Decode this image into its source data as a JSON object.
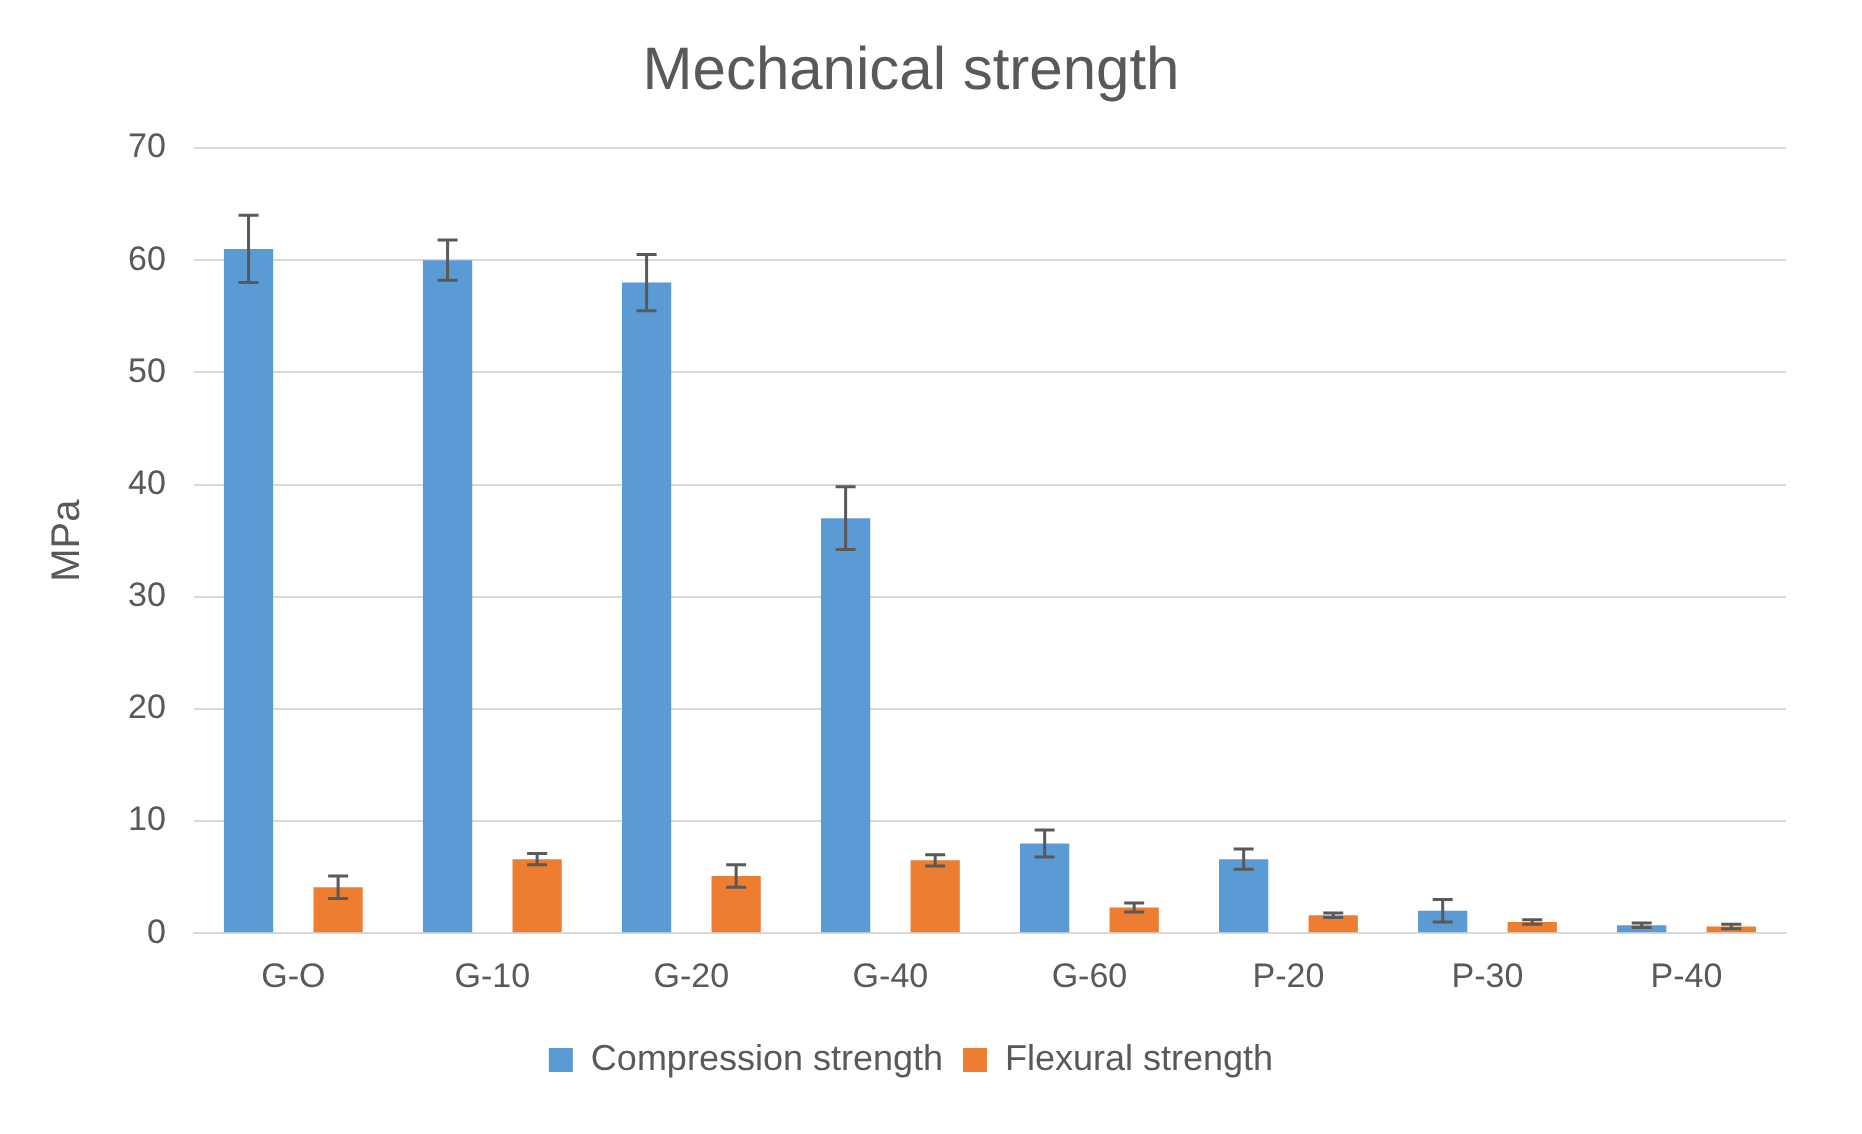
{
  "chart_data": {
    "type": "bar",
    "title": "Mechanical strength",
    "ylabel": "MPa",
    "categories": [
      "G-O",
      "G-10",
      "G-20",
      "G-40",
      "G-60",
      "P-20",
      "P-30",
      "P-40"
    ],
    "series": [
      {
        "name": "Compression strength",
        "color": "#5b9bd5",
        "values": [
          61,
          60,
          58,
          37,
          8,
          6.6,
          2,
          0.7
        ],
        "errors": [
          3,
          1.8,
          2.5,
          2.8,
          1.2,
          0.9,
          1,
          0.2
        ]
      },
      {
        "name": "Flexural strength",
        "color": "#ed7d31",
        "values": [
          4.1,
          6.6,
          5.1,
          6.5,
          2.3,
          1.6,
          1.0,
          0.6
        ],
        "errors": [
          1,
          0.5,
          1,
          0.5,
          0.4,
          0.2,
          0.2,
          0.2
        ]
      }
    ],
    "ylim": [
      0,
      70
    ],
    "yticks": [
      0,
      10,
      20,
      30,
      40,
      50,
      60,
      70
    ],
    "grid": "y",
    "legend": "bottom"
  }
}
